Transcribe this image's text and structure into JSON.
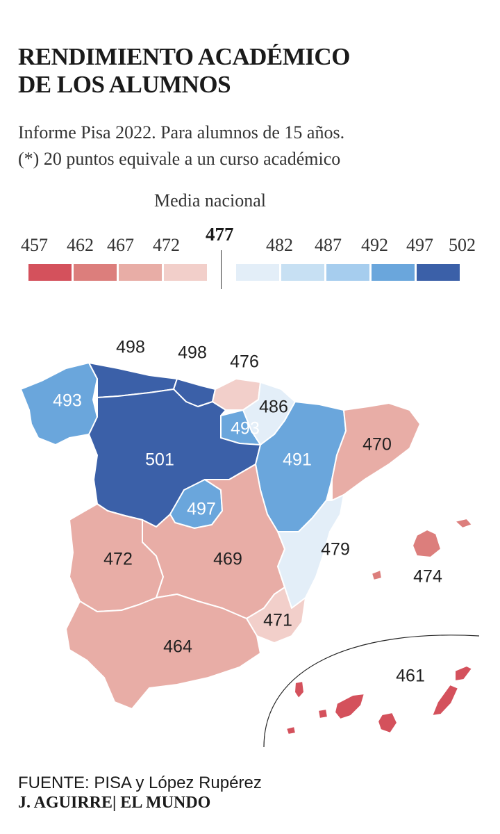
{
  "title_lines": [
    "RENDIMIENTO ACADÉMICO",
    "DE LOS ALUMNOS"
  ],
  "subtitle_lines": [
    "Informe Pisa 2022. Para alumnos de 15 años.",
    "(*) 20 puntos equivale a un curso académico"
  ],
  "legend": {
    "media_label": "Media nacional",
    "media_value": "477",
    "values": [
      "457",
      "462",
      "467",
      "472",
      "482",
      "487",
      "492",
      "497",
      "502"
    ],
    "colors": [
      "#d4515c",
      "#dc7e7c",
      "#e8ada6",
      "#f2cfca",
      "#e3eef8",
      "#c7e0f3",
      "#a6cdee",
      "#6aa6dc",
      "#3b60a8"
    ]
  },
  "regions": [
    {
      "name": "Galicia",
      "value": "493",
      "color": "#6aa6dc"
    },
    {
      "name": "Asturias",
      "value": "498",
      "color": "#3b60a8"
    },
    {
      "name": "Cantabria",
      "value": "498",
      "color": "#3b60a8"
    },
    {
      "name": "País Vasco",
      "value": "476",
      "color": "#f2cfca"
    },
    {
      "name": "Navarra",
      "value": "486",
      "color": "#e3eef8"
    },
    {
      "name": "La Rioja",
      "value": "493",
      "color": "#6aa6dc"
    },
    {
      "name": "Castilla y León",
      "value": "501",
      "color": "#3b60a8"
    },
    {
      "name": "Aragón",
      "value": "491",
      "color": "#6aa6dc"
    },
    {
      "name": "Cataluña",
      "value": "470",
      "color": "#e8ada6"
    },
    {
      "name": "Madrid",
      "value": "497",
      "color": "#6aa6dc"
    },
    {
      "name": "Extremadura",
      "value": "472",
      "color": "#e8ada6"
    },
    {
      "name": "Castilla-La Mancha",
      "value": "469",
      "color": "#e8ada6"
    },
    {
      "name": "C. Valenciana",
      "value": "479",
      "color": "#e3eef8"
    },
    {
      "name": "Baleares",
      "value": "474",
      "color": "#f2cfca"
    },
    {
      "name": "Murcia",
      "value": "471",
      "color": "#e8ada6"
    },
    {
      "name": "Andalucía",
      "value": "464",
      "color": "#dc7e7c"
    },
    {
      "name": "Canarias",
      "value": "461",
      "color": "#d4515c"
    }
  ],
  "source": "FUENTE: PISA y López Rupérez",
  "author": "J. AGUIRRE| EL MUNDO"
}
